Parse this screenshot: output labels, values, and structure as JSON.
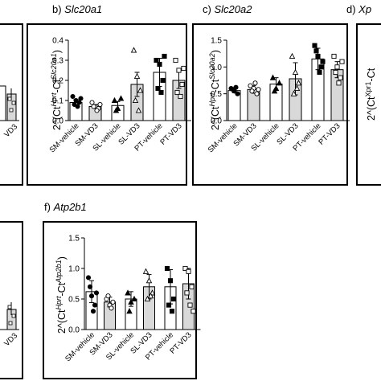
{
  "panel_labels": [
    {
      "id": "b",
      "prefix": "b) ",
      "gene": "Slc20a1"
    },
    {
      "id": "c",
      "prefix": "c) ",
      "gene": "Slc20a2"
    },
    {
      "id": "d",
      "prefix": "d) ",
      "gene": "Xp"
    },
    {
      "id": "f",
      "prefix": "f) ",
      "gene": "Atp2b1"
    }
  ],
  "partial_texts": {
    "left_top": "VD3",
    "left_bottom": "VD3",
    "d_axis": "2^(Ct",
    "d_axis_sup": "Xpr1",
    "d_axis_tail": "-Ct"
  },
  "categories": [
    "SM-vehicle",
    "SM-VD3",
    "SL-vehicle",
    "SL-VD3",
    "PT-vehicle",
    "PT-VD3"
  ],
  "chart_data": [
    {
      "type": "bar",
      "panel": "b",
      "ylabel": {
        "pre": "2^(Ct",
        "sup1": "Hprt",
        "mid": "-Ct",
        "sup2": "Slc20a1",
        "post": ")"
      },
      "ylim": [
        0,
        0.4
      ],
      "yticks": [
        "0.0",
        "0.1",
        "0.2",
        "0.3",
        "0.4"
      ],
      "categories": [
        "SM-vehicle",
        "SM-VD3",
        "SL-vehicle",
        "SL-VD3",
        "PT-vehicle",
        "PT-VD3"
      ],
      "values": [
        0.09,
        0.07,
        0.075,
        0.18,
        0.24,
        0.2
      ],
      "errors": [
        0.015,
        0.01,
        0.02,
        0.06,
        0.07,
        0.04
      ],
      "points": [
        [
          0.12,
          0.1,
          0.09,
          0.08,
          0.07,
          0.11
        ],
        [
          0.09,
          0.07,
          0.06,
          0.07,
          0.05,
          0.08
        ],
        [
          0.1,
          0.06,
          0.11,
          0.05
        ],
        [
          0.35,
          0.22,
          0.15,
          0.1,
          0.05
        ],
        [
          0.3,
          0.28,
          0.2,
          0.16,
          0.14,
          0.32
        ],
        [
          0.3,
          0.25,
          0.18,
          0.14,
          0.12,
          0.26
        ]
      ],
      "grid": false
    },
    {
      "type": "bar",
      "panel": "c",
      "ylabel": {
        "pre": "2^(Ct",
        "sup1": "Hprt",
        "mid": "-Ct",
        "sup2": "Slc20a2",
        "post": ")"
      },
      "ylim": [
        0,
        1.5
      ],
      "yticks": [
        "0.0",
        "0.5",
        "1.0",
        "1.5"
      ],
      "categories": [
        "SM-vehicle",
        "SM-VD3",
        "SL-vehicle",
        "SL-VD3",
        "PT-vehicle",
        "PT-VD3"
      ],
      "values": [
        0.56,
        0.58,
        0.68,
        0.78,
        1.15,
        0.95
      ],
      "errors": [
        0.04,
        0.07,
        0.12,
        0.3,
        0.2,
        0.15
      ],
      "points": [
        [
          0.6,
          0.55,
          0.5,
          0.58,
          0.62
        ],
        [
          0.65,
          0.6,
          0.5,
          0.55,
          0.7,
          0.58
        ],
        [
          0.8,
          0.6,
          0.7,
          0.55
        ],
        [
          1.2,
          0.9,
          0.7,
          0.5,
          0.6
        ],
        [
          1.4,
          1.2,
          1.0,
          1.3,
          0.9,
          1.1
        ],
        [
          1.2,
          1.0,
          0.8,
          0.9,
          0.7,
          1.1
        ]
      ],
      "grid": false
    },
    {
      "type": "bar",
      "panel": "f",
      "ylabel": {
        "pre": "2^(Ct",
        "sup1": "Hprt",
        "mid": "-Ct",
        "sup2": "Atp2b1",
        "post": ")"
      },
      "ylim": [
        0,
        1.5
      ],
      "yticks": [
        "0.0",
        "0.5",
        "1.0",
        "1.5"
      ],
      "categories": [
        "SM-vehicle",
        "SM-VD3",
        "SL-vehicle",
        "SL-VD3",
        "PT-vehicle",
        "PT-VD3"
      ],
      "values": [
        0.62,
        0.45,
        0.5,
        0.7,
        0.7,
        0.75
      ],
      "errors": [
        0.18,
        0.08,
        0.12,
        0.2,
        0.28,
        0.25
      ],
      "points": [
        [
          0.85,
          0.55,
          0.4,
          0.7,
          0.3,
          0.6
        ],
        [
          0.5,
          0.4,
          0.45,
          0.55,
          0.35
        ],
        [
          0.6,
          0.45,
          0.5,
          0.3
        ],
        [
          0.95,
          0.8,
          0.6,
          0.5,
          0.55
        ],
        [
          1.0,
          0.8,
          0.5,
          0.4,
          0.3
        ],
        [
          1.0,
          0.95,
          0.7,
          0.6,
          0.4,
          0.3
        ]
      ],
      "grid": false
    }
  ]
}
